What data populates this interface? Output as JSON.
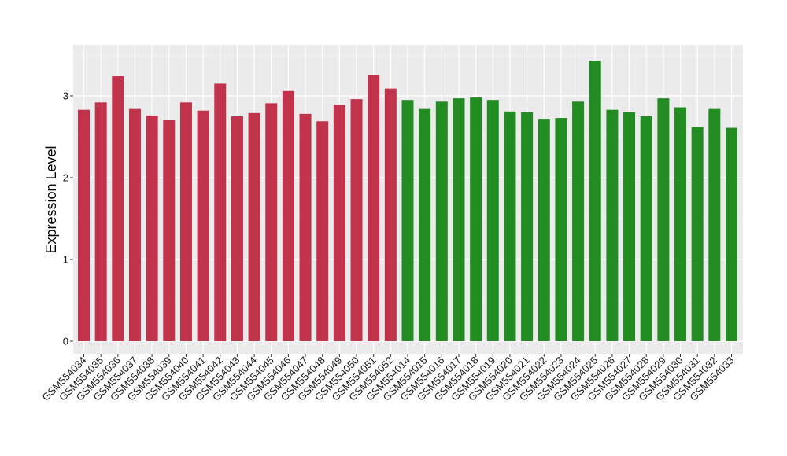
{
  "chart_data": {
    "type": "bar",
    "title": "",
    "xlabel": "",
    "ylabel": "Expression Level",
    "ylim": [
      0,
      3.5
    ],
    "yticks": [
      0,
      1,
      2,
      3
    ],
    "grid": true,
    "background": "#ebebeb",
    "categories": [
      "GSM554034",
      "GSM554035",
      "GSM554036",
      "GSM554037",
      "GSM554038",
      "GSM554039",
      "GSM554040",
      "GSM554041",
      "GSM554042",
      "GSM554043",
      "GSM554044",
      "GSM554045",
      "GSM554046",
      "GSM554047",
      "GSM554048",
      "GSM554049",
      "GSM554050",
      "GSM554051",
      "GSM554052",
      "GSM554014",
      "GSM554015",
      "GSM554016",
      "GSM554017",
      "GSM554018",
      "GSM554019",
      "GSM554020",
      "GSM554021",
      "GSM554022",
      "GSM554023",
      "GSM554024",
      "GSM554025",
      "GSM554026",
      "GSM554027",
      "GSM554028",
      "GSM554029",
      "GSM554030",
      "GSM554031",
      "GSM554032",
      "GSM554033"
    ],
    "values": [
      2.83,
      2.92,
      3.24,
      2.84,
      2.76,
      2.71,
      2.92,
      2.82,
      3.15,
      2.75,
      2.79,
      2.91,
      3.06,
      2.78,
      2.69,
      2.89,
      2.96,
      3.25,
      3.09,
      2.95,
      2.84,
      2.93,
      2.97,
      2.98,
      2.95,
      2.81,
      2.8,
      2.72,
      2.73,
      2.93,
      3.43,
      2.83,
      2.8,
      2.75,
      2.97,
      2.86,
      2.62,
      2.84,
      2.61
    ],
    "colors": [
      "#c0334a",
      "#c0334a",
      "#c0334a",
      "#c0334a",
      "#c0334a",
      "#c0334a",
      "#c0334a",
      "#c0334a",
      "#c0334a",
      "#c0334a",
      "#c0334a",
      "#c0334a",
      "#c0334a",
      "#c0334a",
      "#c0334a",
      "#c0334a",
      "#c0334a",
      "#c0334a",
      "#c0334a",
      "#228b22",
      "#228b22",
      "#228b22",
      "#228b22",
      "#228b22",
      "#228b22",
      "#228b22",
      "#228b22",
      "#228b22",
      "#228b22",
      "#228b22",
      "#228b22",
      "#228b22",
      "#228b22",
      "#228b22",
      "#228b22",
      "#228b22",
      "#228b22",
      "#228b22",
      "#228b22"
    ]
  }
}
